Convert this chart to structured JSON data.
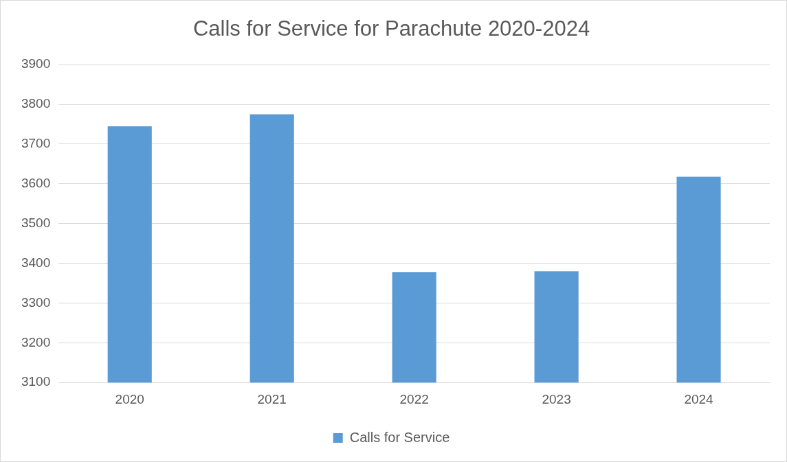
{
  "chart_data": {
    "type": "bar",
    "title": "Calls for Service for Parachute 2020-2024",
    "categories": [
      "2020",
      "2021",
      "2022",
      "2023",
      "2024"
    ],
    "series": [
      {
        "name": "Calls for Service",
        "color": "#5b9bd5",
        "values": [
          3745,
          3775,
          3378,
          3380,
          3618
        ]
      }
    ],
    "ylim": [
      3100,
      3900
    ],
    "yticks": [
      3100,
      3200,
      3300,
      3400,
      3500,
      3600,
      3700,
      3800,
      3900
    ],
    "grid": "y",
    "legend": "bottom"
  }
}
